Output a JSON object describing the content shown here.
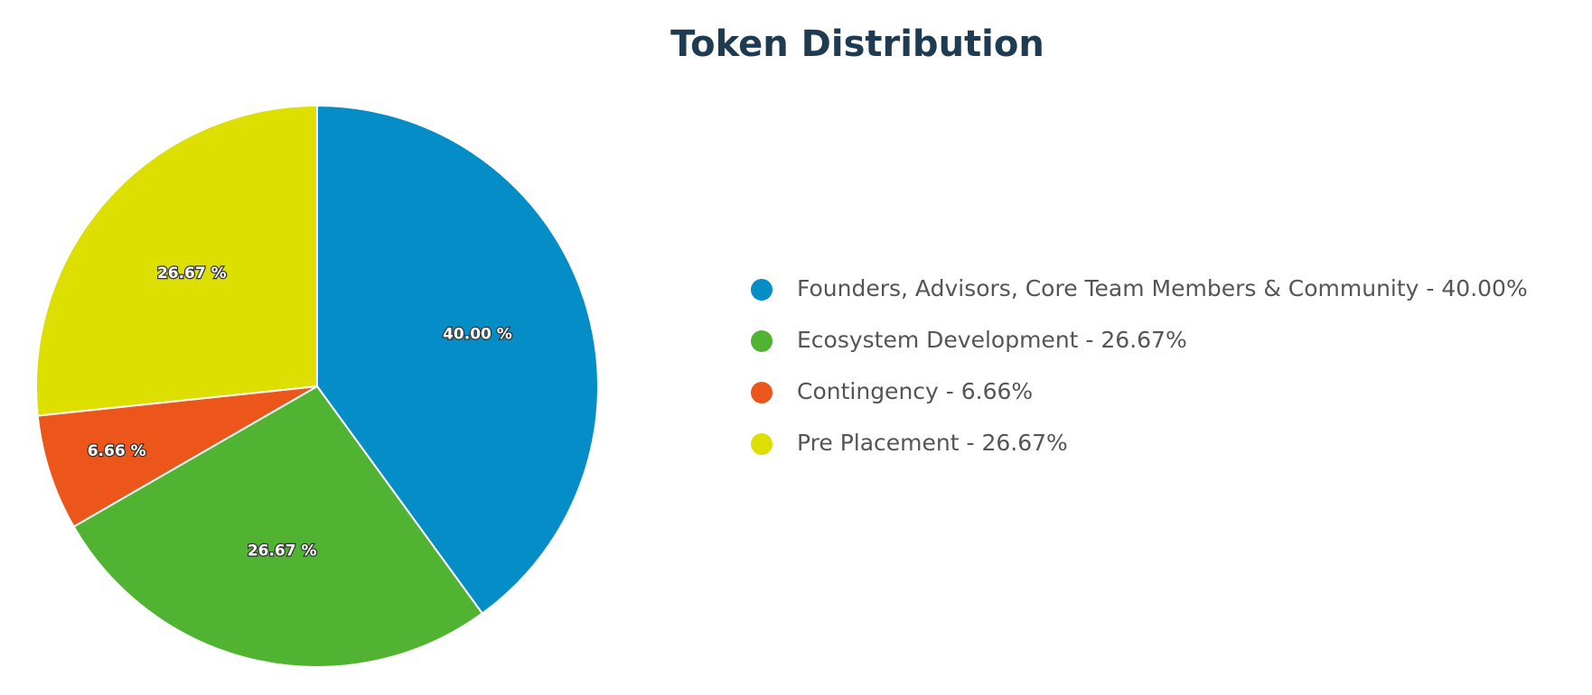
{
  "chart_data": {
    "type": "pie",
    "title": "Token Distribution",
    "categories": [
      "Founders, Advisors, Core Team Members & Community - 40.00%",
      "Ecosystem Development - 26.67%",
      "Contingency - 6.66%",
      "Pre Placement - 26.67%"
    ],
    "values": [
      40,
      26.67,
      6.66,
      26.67
    ],
    "value_labels": [
      "40.00 %",
      "26.67 %",
      "6.66 %",
      "26.67 %"
    ],
    "colors": [
      "#058dc7",
      "#50b432",
      "#ed561b",
      "#dddf00"
    ],
    "legend": "right"
  }
}
